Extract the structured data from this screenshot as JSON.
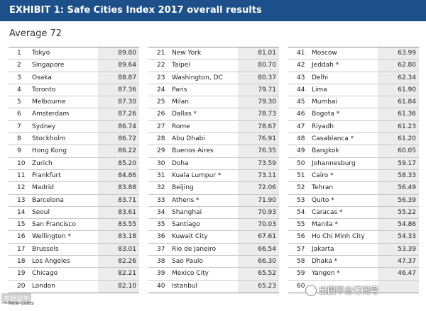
{
  "header": {
    "title": "EXHIBIT 1: Safe Cities Index 2017 overall results"
  },
  "average": {
    "label": "Average 72"
  },
  "columns": [
    {
      "rows": [
        {
          "rank": "1",
          "city": "Tokyo",
          "score": "89.80"
        },
        {
          "rank": "2",
          "city": "Singapore",
          "score": "89.64"
        },
        {
          "rank": "3",
          "city": "Osaka",
          "score": "88.87"
        },
        {
          "rank": "4",
          "city": "Toronto",
          "score": "87.36"
        },
        {
          "rank": "5",
          "city": "Melbourne",
          "score": "87.30"
        },
        {
          "rank": "6",
          "city": "Amsterdam",
          "score": "87.26"
        },
        {
          "rank": "7",
          "city": "Sydney",
          "score": "86.74"
        },
        {
          "rank": "8",
          "city": "Stockholm",
          "score": "86.72"
        },
        {
          "rank": "9",
          "city": "Hong Kong",
          "score": "86.22"
        },
        {
          "rank": "10",
          "city": "Zurich",
          "score": "85.20"
        },
        {
          "rank": "11",
          "city": "Frankfurt",
          "score": "84.86"
        },
        {
          "rank": "12",
          "city": "Madrid",
          "score": "83.88"
        },
        {
          "rank": "13",
          "city": "Barcelona",
          "score": "83.71"
        },
        {
          "rank": "14",
          "city": "Seoul",
          "score": "83.61"
        },
        {
          "rank": "15",
          "city": "San Francisco",
          "score": "83.55"
        },
        {
          "rank": "16",
          "city": "Wellington *",
          "score": "83.18"
        },
        {
          "rank": "17",
          "city": "Brussels",
          "score": "83.01"
        },
        {
          "rank": "18",
          "city": "Los Angeles",
          "score": "82.26"
        },
        {
          "rank": "19",
          "city": "Chicago",
          "score": "82.21"
        },
        {
          "rank": "20",
          "city": "London",
          "score": "82.10"
        }
      ]
    },
    {
      "rows": [
        {
          "rank": "21",
          "city": "New York",
          "score": "81.01"
        },
        {
          "rank": "22",
          "city": "Taipei",
          "score": "80.70"
        },
        {
          "rank": "23",
          "city": "Washington, DC",
          "score": "80.37"
        },
        {
          "rank": "24",
          "city": "Paris",
          "score": "79.71"
        },
        {
          "rank": "25",
          "city": "Milan",
          "score": "79.30"
        },
        {
          "rank": "26",
          "city": "Dallas *",
          "score": "78.73"
        },
        {
          "rank": "27",
          "city": "Rome",
          "score": "78.67"
        },
        {
          "rank": "28",
          "city": "Abu Dhabi",
          "score": "76.91"
        },
        {
          "rank": "29",
          "city": "Buenos Aires",
          "score": "76.35"
        },
        {
          "rank": "30",
          "city": "Doha",
          "score": "73.59"
        },
        {
          "rank": "31",
          "city": "Kuala Lumpur *",
          "score": "73.11"
        },
        {
          "rank": "32",
          "city": "Beijing",
          "score": "72.06"
        },
        {
          "rank": "33",
          "city": "Athens *",
          "score": "71.90"
        },
        {
          "rank": "34",
          "city": "Shanghai",
          "score": "70.93"
        },
        {
          "rank": "35",
          "city": "Santiago",
          "score": "70.03"
        },
        {
          "rank": "36",
          "city": "Kuwait City",
          "score": "67.61"
        },
        {
          "rank": "37",
          "city": "Rio de Janeiro",
          "score": "66.54"
        },
        {
          "rank": "38",
          "city": "Sao Paulo",
          "score": "66.30"
        },
        {
          "rank": "39",
          "city": "Mexico City",
          "score": "65.52"
        },
        {
          "rank": "40",
          "city": "Istanbul",
          "score": "65.23"
        }
      ]
    },
    {
      "rows": [
        {
          "rank": "41",
          "city": "Moscow",
          "score": "63.99"
        },
        {
          "rank": "42",
          "city": "Jeddah *",
          "score": "62.80"
        },
        {
          "rank": "43",
          "city": "Delhi",
          "score": "62.34"
        },
        {
          "rank": "44",
          "city": "Lima",
          "score": "61.90"
        },
        {
          "rank": "45",
          "city": "Mumbai",
          "score": "61.84"
        },
        {
          "rank": "46",
          "city": "Bogota *",
          "score": "61.36"
        },
        {
          "rank": "47",
          "city": "Riyadh",
          "score": "61.23"
        },
        {
          "rank": "48",
          "city": "Casablanca *",
          "score": "61.20"
        },
        {
          "rank": "49",
          "city": "Bangkok",
          "score": "60.05"
        },
        {
          "rank": "50",
          "city": "Johannesburg",
          "score": "59.17"
        },
        {
          "rank": "51",
          "city": "Cairo *",
          "score": "58.33"
        },
        {
          "rank": "52",
          "city": "Tehran",
          "score": "56.49"
        },
        {
          "rank": "53",
          "city": "Quito *",
          "score": "56.39"
        },
        {
          "rank": "54",
          "city": "Caracas *",
          "score": "55.22"
        },
        {
          "rank": "55",
          "city": "Manila *",
          "score": "54.86"
        },
        {
          "rank": "56",
          "city": "Ho Chi Minh City",
          "score": "54.33"
        },
        {
          "rank": "57",
          "city": "Jakarta",
          "score": "53.39"
        },
        {
          "rank": "58",
          "city": "Dhaka *",
          "score": "47.37"
        },
        {
          "rank": "59",
          "city": "Yangon *",
          "score": "46.47"
        },
        {
          "rank": "60",
          "city": "",
          "score": ""
        }
      ]
    }
  ],
  "footnote": "* New cities",
  "watermarks": {
    "left": "东财留学",
    "right": "出国平台订阅号"
  }
}
